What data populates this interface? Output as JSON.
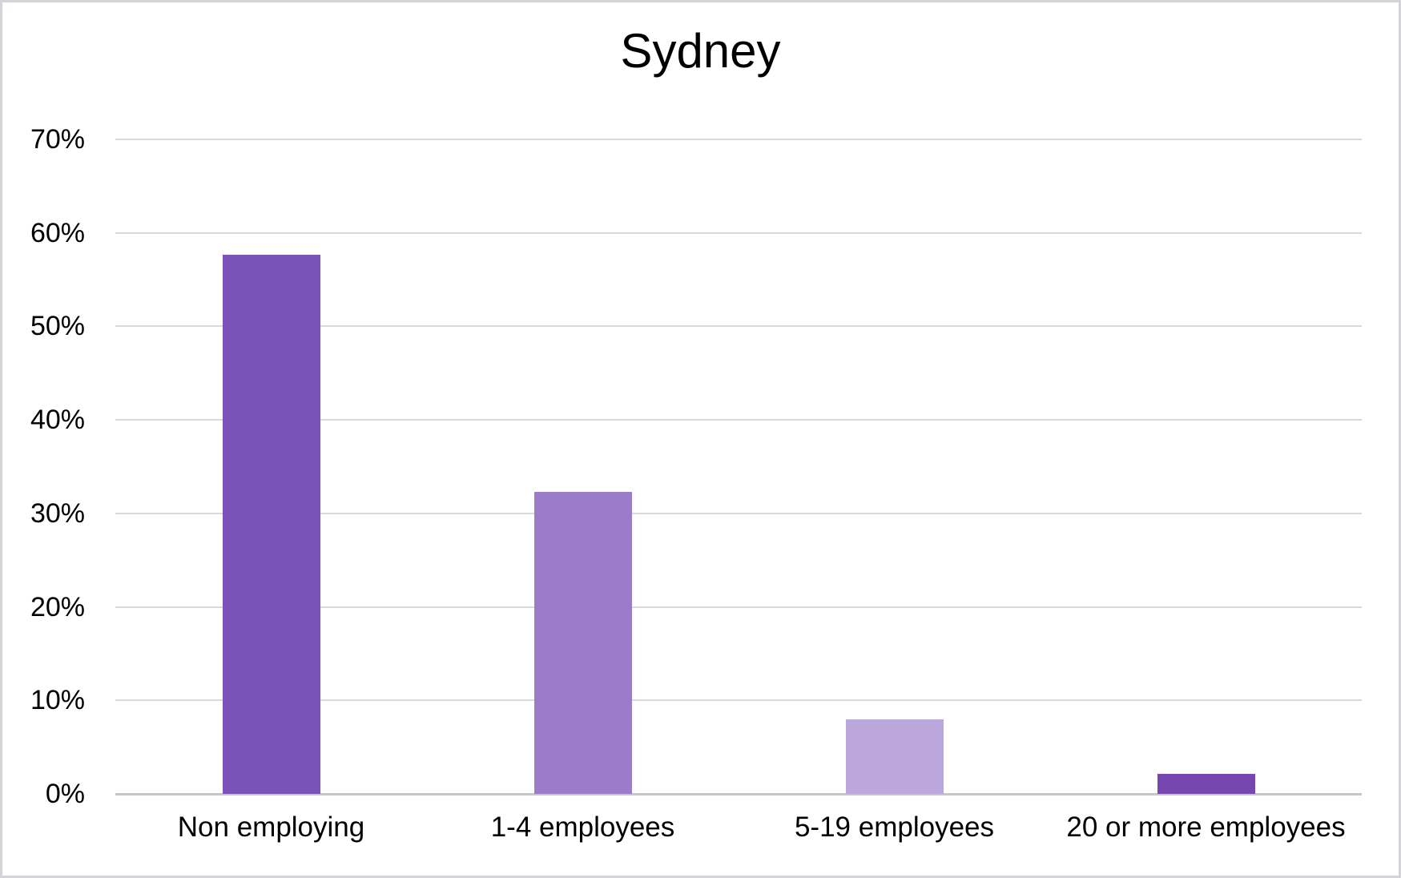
{
  "chart_data": {
    "type": "bar",
    "title": "Sydney",
    "categories": [
      "Non employing",
      "1-4 employees",
      "5-19 employees",
      "20 or more employees"
    ],
    "values": [
      57.7,
      32.3,
      8.0,
      2.1
    ],
    "unit": "%",
    "bar_colors": [
      "#7a52b8",
      "#9a7ccb",
      "#bca7dc",
      "#7647ae"
    ],
    "xlabel": "",
    "ylabel": "",
    "ylim": [
      0,
      70
    ],
    "y_tick_values": [
      0,
      10,
      20,
      30,
      40,
      50,
      60,
      70
    ],
    "y_tick_labels": [
      "0%",
      "10%",
      "20%",
      "30%",
      "40%",
      "50%",
      "60%",
      "70%"
    ],
    "grid": "horizontal",
    "legend": "none"
  },
  "colors": {
    "gridline": "#d9d9d9",
    "axis_line": "#c6c6c6",
    "text": "#000000",
    "border": "#d2d2d7",
    "background": "#ffffff"
  }
}
